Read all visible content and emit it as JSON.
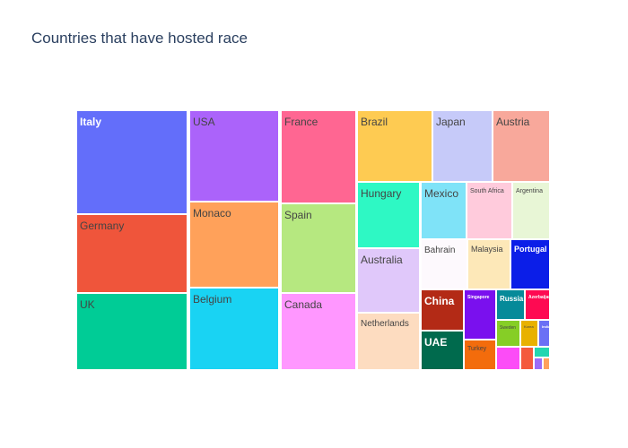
{
  "title": "Countries that have hosted race",
  "chart_data": {
    "type": "treemap",
    "title": "Countries that have hosted race",
    "tiles": [
      {
        "label": "Italy",
        "color": "#636efa",
        "label_color": "#ffffff"
      },
      {
        "label": "Germany",
        "color": "#ef553b",
        "label_color": "#444444"
      },
      {
        "label": "UK",
        "color": "#00cc96",
        "label_color": "#444444"
      },
      {
        "label": "USA",
        "color": "#ab63fa",
        "label_color": "#444444"
      },
      {
        "label": "Monaco",
        "color": "#ffa15a",
        "label_color": "#444444"
      },
      {
        "label": "Belgium",
        "color": "#19d3f3",
        "label_color": "#444444"
      },
      {
        "label": "France",
        "color": "#ff6692",
        "label_color": "#444444"
      },
      {
        "label": "Spain",
        "color": "#b6e880",
        "label_color": "#444444"
      },
      {
        "label": "Canada",
        "color": "#ff97ff",
        "label_color": "#444444"
      },
      {
        "label": "Brazil",
        "color": "#fecb52",
        "label_color": "#444444"
      },
      {
        "label": "Hungary",
        "color": "#2ef8c4",
        "label_color": "#444444"
      },
      {
        "label": "Australia",
        "color": "#e0c8fa",
        "label_color": "#444444"
      },
      {
        "label": "Netherlands",
        "color": "#fddcc0",
        "label_color": "#444444"
      },
      {
        "label": "Japan",
        "color": "#c6caf9",
        "label_color": "#444444"
      },
      {
        "label": "Austria",
        "color": "#f8a89b",
        "label_color": "#444444"
      },
      {
        "label": "Mexico",
        "color": "#7fe3f8",
        "label_color": "#444444"
      },
      {
        "label": "South Africa",
        "color": "#ffcbdc",
        "label_color": "#444444"
      },
      {
        "label": "Argentina",
        "color": "#e8f6d6",
        "label_color": "#444444"
      },
      {
        "label": "Bahrain",
        "color": "#fdf9fd",
        "label_color": "#444444"
      },
      {
        "label": "Malaysia",
        "color": "#fde8b8",
        "label_color": "#444444"
      },
      {
        "label": "Portugal",
        "color": "#0b1ee8",
        "label_color": "#ffffff"
      },
      {
        "label": "China",
        "color": "#b32a16",
        "label_color": "#ffffff"
      },
      {
        "label": "Singapore",
        "color": "#7a10ee",
        "label_color": "#ffffff"
      },
      {
        "label": "Russia",
        "color": "#068a99",
        "label_color": "#ffffff"
      },
      {
        "label": "Azerbaijan",
        "color": "#fe0a52",
        "label_color": "#ffffff"
      },
      {
        "label": "UAE",
        "color": "#006a4d",
        "label_color": "#ffffff"
      },
      {
        "label": "Turkey",
        "color": "#f36c0c",
        "label_color": "#444444"
      },
      {
        "label": "Sweden",
        "color": "#86ce26",
        "label_color": "#444444"
      },
      {
        "label": "Korea",
        "color": "#e8b100",
        "label_color": "#444444"
      },
      {
        "label": "India",
        "color": "#6a70f5",
        "label_color": "#ffffff"
      },
      {
        "label": "",
        "color": "#fc4cf7",
        "label_color": "#444444"
      },
      {
        "label": "",
        "color": "#f45a3c",
        "label_color": "#444444"
      },
      {
        "label": "",
        "color": "#22d6b0",
        "label_color": "#444444"
      },
      {
        "label": "",
        "color": "#9c6cf8",
        "label_color": "#444444"
      },
      {
        "label": "",
        "color": "#ffa25c",
        "label_color": "#444444"
      }
    ]
  }
}
